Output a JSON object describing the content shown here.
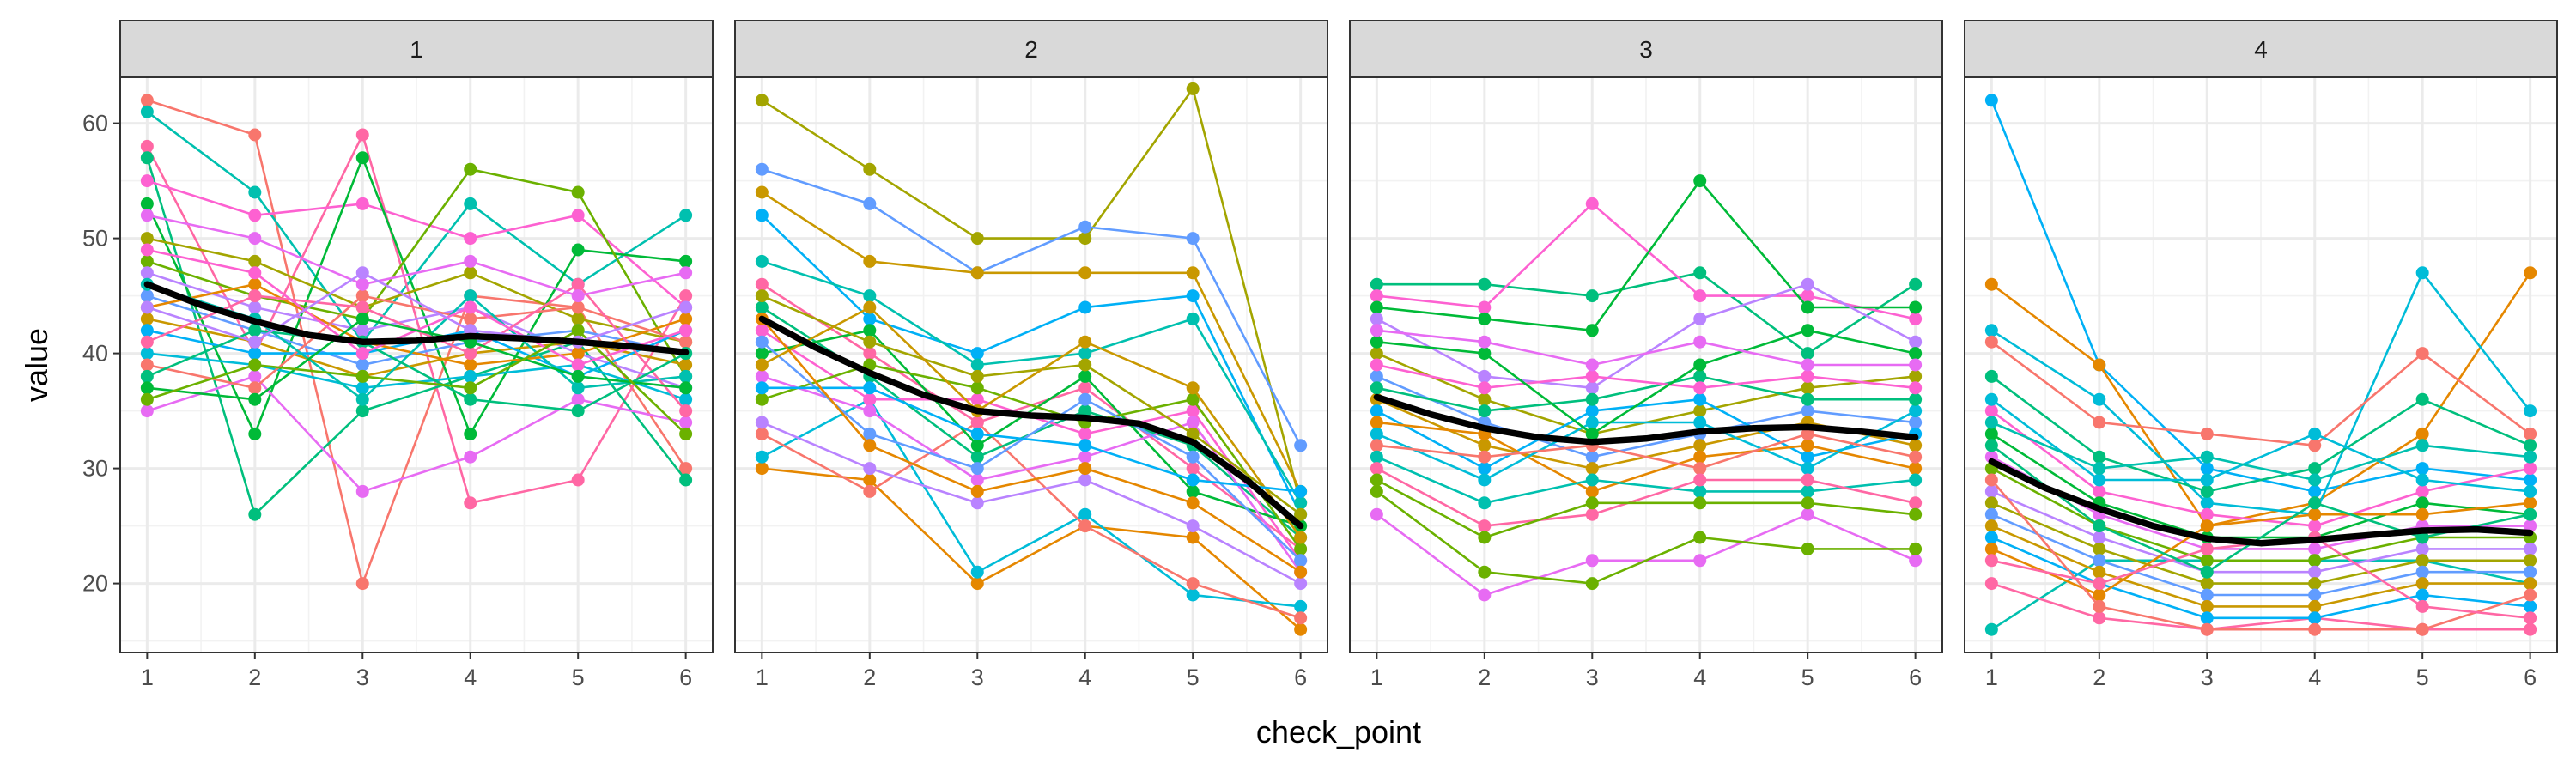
{
  "chart_data": {
    "type": "line",
    "facet_variable": "facet",
    "facets": [
      {
        "label": "1",
        "smooth": [
          [
            1,
            46
          ],
          [
            1.5,
            44.2
          ],
          [
            2,
            42.8
          ],
          [
            2.5,
            41.6
          ],
          [
            3,
            41
          ],
          [
            3.5,
            41.1
          ],
          [
            4,
            41.5
          ],
          [
            4.5,
            41.3
          ],
          [
            5,
            41
          ],
          [
            5.5,
            40.6
          ],
          [
            6,
            40.1
          ]
        ],
        "subjects": [
          [
            62,
            59,
            20,
            45,
            44,
            30
          ],
          [
            61,
            54,
            41,
            53,
            46,
            52
          ],
          [
            58,
            40,
            59,
            27,
            29,
            45
          ],
          [
            57,
            26,
            35,
            38,
            41,
            29
          ],
          [
            55,
            52,
            53,
            50,
            52,
            44
          ],
          [
            53,
            33,
            57,
            33,
            49,
            48
          ],
          [
            35,
            38,
            28,
            31,
            36,
            34
          ],
          [
            48,
            45,
            43,
            56,
            54,
            38
          ],
          [
            47,
            44,
            42,
            44,
            40,
            37
          ],
          [
            50,
            48,
            44,
            47,
            43,
            41
          ],
          [
            45,
            42,
            39,
            41,
            42,
            40
          ],
          [
            43,
            41,
            38,
            40,
            41,
            39
          ],
          [
            42,
            40,
            40,
            42,
            38,
            42
          ],
          [
            44,
            46,
            41,
            39,
            40,
            43
          ],
          [
            40,
            39,
            37,
            38,
            39,
            36
          ],
          [
            39,
            37,
            45,
            43,
            44,
            41
          ],
          [
            46,
            43,
            36,
            45,
            37,
            38
          ],
          [
            41,
            45,
            44,
            40,
            46,
            35
          ],
          [
            38,
            42,
            41,
            36,
            35,
            40
          ],
          [
            49,
            47,
            40,
            44,
            39,
            42
          ],
          [
            37,
            36,
            43,
            41,
            38,
            37
          ],
          [
            52,
            50,
            46,
            48,
            45,
            47
          ],
          [
            36,
            39,
            38,
            37,
            42,
            33
          ],
          [
            44,
            41,
            47,
            42,
            41,
            44
          ]
        ]
      },
      {
        "label": "2",
        "smooth": [
          [
            1,
            43
          ],
          [
            1.5,
            40.5
          ],
          [
            2,
            38.3
          ],
          [
            2.5,
            36.4
          ],
          [
            3,
            35
          ],
          [
            3.5,
            34.6
          ],
          [
            4,
            34.4
          ],
          [
            4.5,
            33.9
          ],
          [
            5,
            32.3
          ],
          [
            5.5,
            29
          ],
          [
            6,
            25
          ]
        ],
        "subjects": [
          [
            62,
            56,
            50,
            50,
            63,
            27
          ],
          [
            56,
            53,
            47,
            51,
            50,
            32
          ],
          [
            54,
            48,
            47,
            47,
            47,
            28
          ],
          [
            52,
            43,
            40,
            44,
            45,
            26
          ],
          [
            30,
            29,
            20,
            25,
            24,
            16
          ],
          [
            31,
            36,
            21,
            26,
            19,
            18
          ],
          [
            33,
            28,
            34,
            25,
            20,
            17
          ],
          [
            48,
            45,
            39,
            40,
            43,
            27
          ],
          [
            46,
            40,
            34,
            37,
            30,
            23
          ],
          [
            44,
            38,
            31,
            35,
            32,
            24
          ],
          [
            42,
            36,
            36,
            33,
            35,
            22
          ],
          [
            40,
            42,
            32,
            38,
            28,
            25
          ],
          [
            38,
            35,
            29,
            31,
            34,
            21
          ],
          [
            36,
            39,
            37,
            34,
            36,
            23
          ],
          [
            34,
            30,
            27,
            29,
            25,
            20
          ],
          [
            45,
            41,
            38,
            39,
            33,
            26
          ],
          [
            41,
            33,
            30,
            36,
            31,
            22
          ],
          [
            39,
            44,
            35,
            41,
            37,
            24
          ],
          [
            37,
            37,
            33,
            32,
            29,
            28
          ],
          [
            43,
            32,
            28,
            30,
            27,
            21
          ]
        ]
      },
      {
        "label": "3",
        "smooth": [
          [
            1,
            36.2
          ],
          [
            1.5,
            34.7
          ],
          [
            2,
            33.5
          ],
          [
            2.5,
            32.7
          ],
          [
            3,
            32.3
          ],
          [
            3.5,
            32.6
          ],
          [
            4,
            33.2
          ],
          [
            4.5,
            33.5
          ],
          [
            5,
            33.6
          ],
          [
            5.5,
            33.2
          ],
          [
            6,
            32.7
          ]
        ],
        "subjects": [
          [
            46,
            46,
            45,
            47,
            40,
            46
          ],
          [
            45,
            44,
            53,
            45,
            45,
            43
          ],
          [
            44,
            43,
            42,
            55,
            44,
            44
          ],
          [
            26,
            19,
            22,
            22,
            26,
            22
          ],
          [
            28,
            21,
            20,
            24,
            23,
            23
          ],
          [
            43,
            38,
            37,
            43,
            46,
            41
          ],
          [
            40,
            36,
            33,
            35,
            37,
            38
          ],
          [
            38,
            34,
            31,
            33,
            35,
            34
          ],
          [
            36,
            32,
            30,
            32,
            34,
            32
          ],
          [
            35,
            30,
            35,
            36,
            31,
            33
          ],
          [
            34,
            33,
            28,
            31,
            32,
            30
          ],
          [
            33,
            29,
            34,
            34,
            30,
            35
          ],
          [
            32,
            31,
            32,
            30,
            33,
            31
          ],
          [
            31,
            27,
            29,
            28,
            28,
            29
          ],
          [
            30,
            25,
            26,
            29,
            29,
            27
          ],
          [
            37,
            35,
            36,
            38,
            36,
            36
          ],
          [
            39,
            37,
            38,
            37,
            38,
            37
          ],
          [
            41,
            40,
            33,
            39,
            42,
            40
          ],
          [
            42,
            41,
            39,
            41,
            39,
            39
          ],
          [
            29,
            24,
            27,
            27,
            27,
            26
          ]
        ]
      },
      {
        "label": "4",
        "smooth": [
          [
            1,
            30.6
          ],
          [
            1.5,
            28.3
          ],
          [
            2,
            26.5
          ],
          [
            2.5,
            25
          ],
          [
            3,
            23.9
          ],
          [
            3.5,
            23.5
          ],
          [
            4,
            23.8
          ],
          [
            4.5,
            24.2
          ],
          [
            5,
            24.6
          ],
          [
            5.5,
            24.7
          ],
          [
            6,
            24.4
          ]
        ],
        "subjects": [
          [
            62,
            39,
            30,
            28,
            30,
            29
          ],
          [
            46,
            39,
            25,
            27,
            33,
            47
          ],
          [
            42,
            36,
            27,
            26,
            47,
            35
          ],
          [
            41,
            34,
            33,
            32,
            40,
            33
          ],
          [
            16,
            22,
            22,
            22,
            22,
            20
          ],
          [
            20,
            17,
            16,
            17,
            16,
            16
          ],
          [
            38,
            31,
            28,
            30,
            36,
            32
          ],
          [
            35,
            28,
            26,
            25,
            28,
            30
          ],
          [
            33,
            27,
            24,
            24,
            27,
            26
          ],
          [
            31,
            26,
            23,
            23,
            25,
            25
          ],
          [
            30,
            25,
            22,
            22,
            24,
            24
          ],
          [
            28,
            24,
            21,
            21,
            23,
            23
          ],
          [
            27,
            23,
            20,
            20,
            22,
            22
          ],
          [
            26,
            22,
            19,
            19,
            21,
            21
          ],
          [
            25,
            21,
            18,
            18,
            20,
            20
          ],
          [
            24,
            20,
            17,
            17,
            19,
            18
          ],
          [
            23,
            19,
            25,
            26,
            26,
            27
          ],
          [
            36,
            29,
            29,
            33,
            29,
            28
          ],
          [
            29,
            18,
            16,
            16,
            16,
            19
          ],
          [
            34,
            30,
            31,
            29,
            32,
            31
          ],
          [
            22,
            20,
            23,
            24,
            18,
            17
          ],
          [
            32,
            25,
            21,
            27,
            24,
            26
          ]
        ]
      }
    ],
    "x_ticks": [
      1,
      2,
      3,
      4,
      5,
      6
    ],
    "y_ticks": [
      20,
      30,
      40,
      50,
      60
    ],
    "xlim": [
      0.75,
      6.25
    ],
    "ylim": [
      14,
      64
    ],
    "xlabel": "check_point",
    "ylabel": "value",
    "grid": true,
    "legend": "none",
    "palette": [
      "#F8766D",
      "#E58700",
      "#C99800",
      "#A3A500",
      "#6BB100",
      "#00BA38",
      "#00BF7D",
      "#00C0AF",
      "#00BCD8",
      "#00B0F6",
      "#619CFF",
      "#B983FF",
      "#E76BF3",
      "#FD61D1",
      "#FF67A4"
    ],
    "smooth_color": "#000000",
    "panel_strip_fill": "#D9D9D9"
  }
}
